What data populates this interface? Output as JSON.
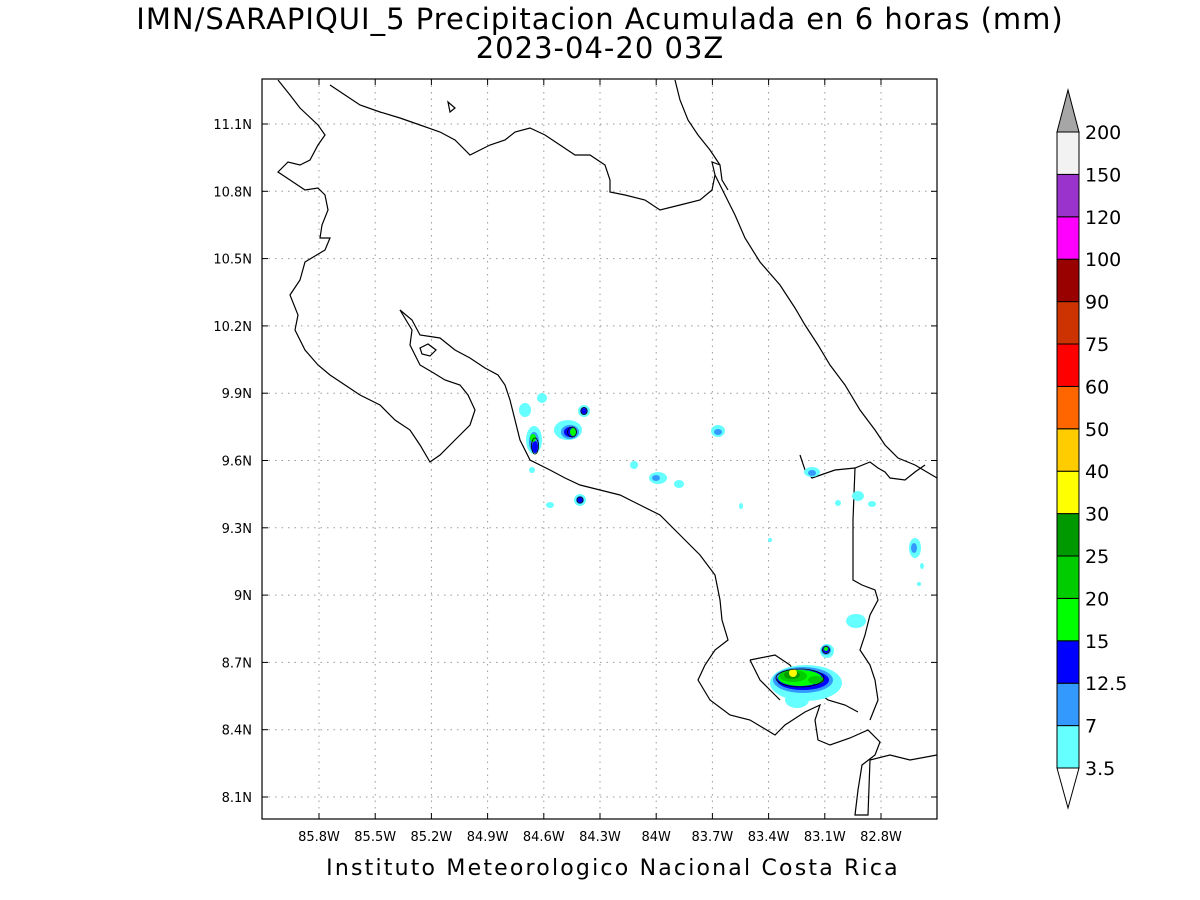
{
  "map": {
    "title": "IMN/SARAPIQUI_5 Precipitacion Acumulada en 6 horas (mm)",
    "subtitle": "2023-04-20 03Z",
    "footer": "Instituto Meteorologico Nacional Costa Rica",
    "lon_ticks": [
      "85.8W",
      "85.5W",
      "85.2W",
      "84.9W",
      "84.6W",
      "84.3W",
      "84W",
      "83.7W",
      "83.4W",
      "83.1W",
      "82.8W"
    ],
    "lat_ticks": [
      "11.1N",
      "10.8N",
      "10.5N",
      "10.2N",
      "9.9N",
      "9.6N",
      "9.3N",
      "9N",
      "8.7N",
      "8.4N",
      "8.1N"
    ],
    "grid": true,
    "colorbar": {
      "labels": [
        "3.5",
        "7",
        "12.5",
        "15",
        "20",
        "25",
        "30",
        "40",
        "50",
        "60",
        "75",
        "90",
        "100",
        "120",
        "150",
        "200"
      ],
      "colors": [
        "#ffffff",
        "#66ffff",
        "#3399ff",
        "#0000ff",
        "#00ff00",
        "#00cc00",
        "#009900",
        "#ffff00",
        "#ffcc00",
        "#ff6600",
        "#ff0000",
        "#cc3300",
        "#990000",
        "#ff00ff",
        "#9933cc",
        "#f2f2f2",
        "#a6a6a6"
      ]
    }
  }
}
